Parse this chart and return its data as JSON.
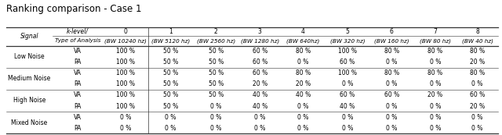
{
  "title": "Ranking comparison - Case 1",
  "figsize": [
    6.4,
    1.73
  ],
  "dpi": 100,
  "title_fontsize": 8.5,
  "table_fontsize": 5.5,
  "header_fontsize": 5.5,
  "bw_fontsize": 5.2,
  "col_header_row1": [
    "Signal",
    "k-level/\nType of Analysis",
    "0\n(BW 10240 hz)",
    "1\n(BW 5120 hz)",
    "2\n(BW 2560 hz)",
    "3\n(BW 1280 hz)",
    "4\n(BW 640hz)",
    "5\n(BW 320 hz)",
    "6\n(BW 160 hz)",
    "7\n(BW 80 hz)",
    "8\n(BW 40 hz)"
  ],
  "row_groups": [
    {
      "group": "Low Noise",
      "rows": [
        [
          "VA",
          "100 %",
          "50 %",
          "50 %",
          "60 %",
          "80 %",
          "100 %",
          "80 %",
          "80 %",
          "80 %"
        ],
        [
          "PA",
          "100 %",
          "50 %",
          "50 %",
          "60 %",
          "0 %",
          "60 %",
          "0 %",
          "0 %",
          "20 %"
        ]
      ]
    },
    {
      "group": "Medium Noise",
      "rows": [
        [
          "VA",
          "100 %",
          "50 %",
          "50 %",
          "60 %",
          "80 %",
          "100 %",
          "80 %",
          "80 %",
          "80 %"
        ],
        [
          "PA",
          "100 %",
          "50 %",
          "50 %",
          "20 %",
          "20 %",
          "0 %",
          "0 %",
          "0 %",
          "0 %"
        ]
      ]
    },
    {
      "group": "High Noise",
      "rows": [
        [
          "VA",
          "100 %",
          "50 %",
          "50 %",
          "40 %",
          "40 %",
          "60 %",
          "60 %",
          "20 %",
          "60 %"
        ],
        [
          "PA",
          "100 %",
          "50 %",
          "0 %",
          "40 %",
          "0 %",
          "40 %",
          "0 %",
          "0 %",
          "20 %"
        ]
      ]
    },
    {
      "group": "Mixed Noise",
      "rows": [
        [
          "VA",
          "0 %",
          "0 %",
          "0 %",
          "0 %",
          "0 %",
          "0 %",
          "0 %",
          "0 %",
          "0 %"
        ],
        [
          "PA",
          "0 %",
          "0 %",
          "0 %",
          "0 %",
          "0 %",
          "0 %",
          "0 %",
          "0 %",
          "0 %"
        ]
      ]
    }
  ]
}
